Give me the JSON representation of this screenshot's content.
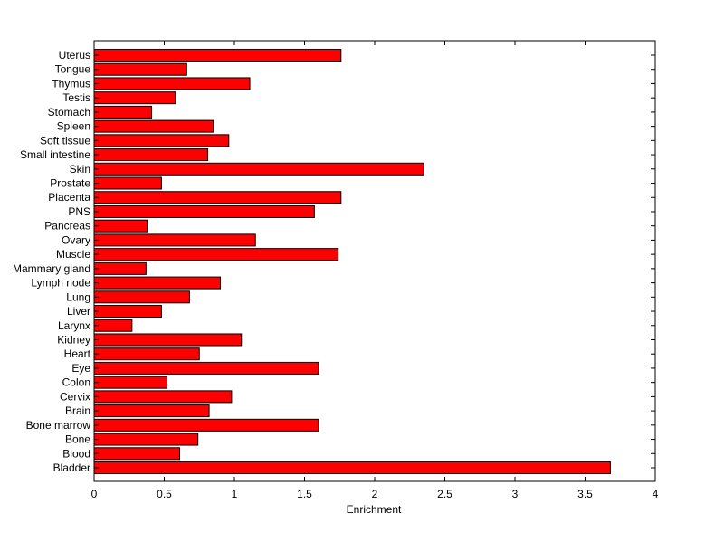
{
  "chart_data": {
    "type": "bar",
    "orientation": "horizontal",
    "xlabel": "Enrichment",
    "xlim": [
      0,
      4
    ],
    "x_ticks": [
      "0",
      "0.5",
      "1",
      "1.5",
      "2",
      "2.5",
      "3",
      "3.5",
      "4"
    ],
    "categories": [
      "Uterus",
      "Tongue",
      "Thymus",
      "Testis",
      "Stomach",
      "Spleen",
      "Soft tissue",
      "Small intestine",
      "Skin",
      "Prostate",
      "Placenta",
      "PNS",
      "Pancreas",
      "Ovary",
      "Muscle",
      "Mammary gland",
      "Lymph node",
      "Lung",
      "Liver",
      "Larynx",
      "Kidney",
      "Heart",
      "Eye",
      "Colon",
      "Cervix",
      "Brain",
      "Bone marrow",
      "Bone",
      "Blood",
      "Bladder"
    ],
    "values": [
      1.76,
      0.66,
      1.11,
      0.58,
      0.41,
      0.85,
      0.96,
      0.81,
      2.35,
      0.48,
      1.76,
      1.57,
      0.38,
      1.15,
      1.74,
      0.37,
      0.9,
      0.68,
      0.48,
      0.27,
      1.05,
      0.75,
      1.6,
      0.52,
      0.98,
      0.82,
      1.6,
      0.74,
      0.61,
      3.68
    ],
    "bar_color": "#ff0000",
    "grid": false,
    "legend": "none"
  }
}
